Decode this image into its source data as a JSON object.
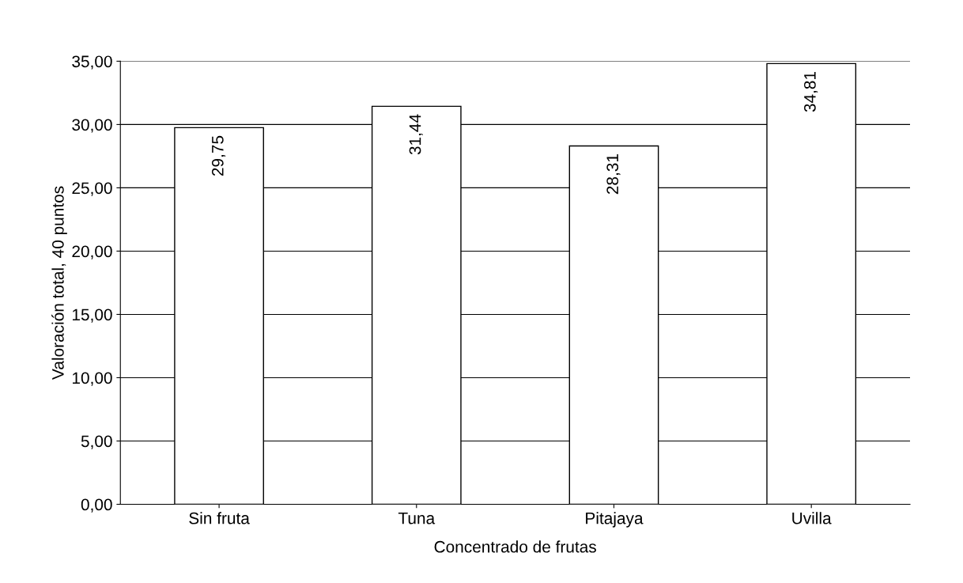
{
  "chart_data": {
    "type": "bar",
    "xlabel": "Concentrado de frutas",
    "ylabel": "Valoración total, 40 puntos",
    "categories": [
      "Sin fruta",
      "Tuna",
      "Pitajaya",
      "Uvilla"
    ],
    "values": [
      29.75,
      31.44,
      28.31,
      34.81
    ],
    "value_labels": [
      "29,75",
      "31,44",
      "28,31",
      "34,81"
    ],
    "color": "#ffffff",
    "ylim": [
      0,
      35
    ],
    "yticks": [
      {
        "value": 0,
        "label": "0,00"
      },
      {
        "value": 5,
        "label": "5,00"
      },
      {
        "value": 10,
        "label": "10,00"
      },
      {
        "value": 15,
        "label": "15,00"
      },
      {
        "value": 20,
        "label": "20,00"
      },
      {
        "value": 25,
        "label": "25,00"
      },
      {
        "value": 30,
        "label": "30,00"
      },
      {
        "value": 35,
        "label": "35,00"
      }
    ],
    "grid": "y",
    "legend": false
  }
}
